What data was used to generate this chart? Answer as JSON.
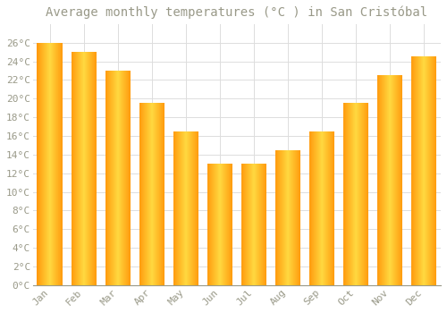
{
  "title": "Average monthly temperatures (°C ) in San Cristóbal",
  "months": [
    "Jan",
    "Feb",
    "Mar",
    "Apr",
    "May",
    "Jun",
    "Jul",
    "Aug",
    "Sep",
    "Oct",
    "Nov",
    "Dec"
  ],
  "values": [
    26,
    25,
    23,
    19.5,
    16.5,
    13,
    13,
    14.5,
    16.5,
    19.5,
    22.5,
    24.5
  ],
  "bar_color_top": "#FFC020",
  "bar_color_bottom": "#FFA000",
  "bar_color_mid": "#FFD060",
  "background_color": "#FFFFFF",
  "grid_color": "#DDDDDD",
  "text_color": "#999988",
  "ylim": [
    0,
    28
  ],
  "yticks": [
    0,
    2,
    4,
    6,
    8,
    10,
    12,
    14,
    16,
    18,
    20,
    22,
    24,
    26
  ],
  "title_fontsize": 10,
  "tick_fontsize": 8,
  "bar_width": 0.75
}
